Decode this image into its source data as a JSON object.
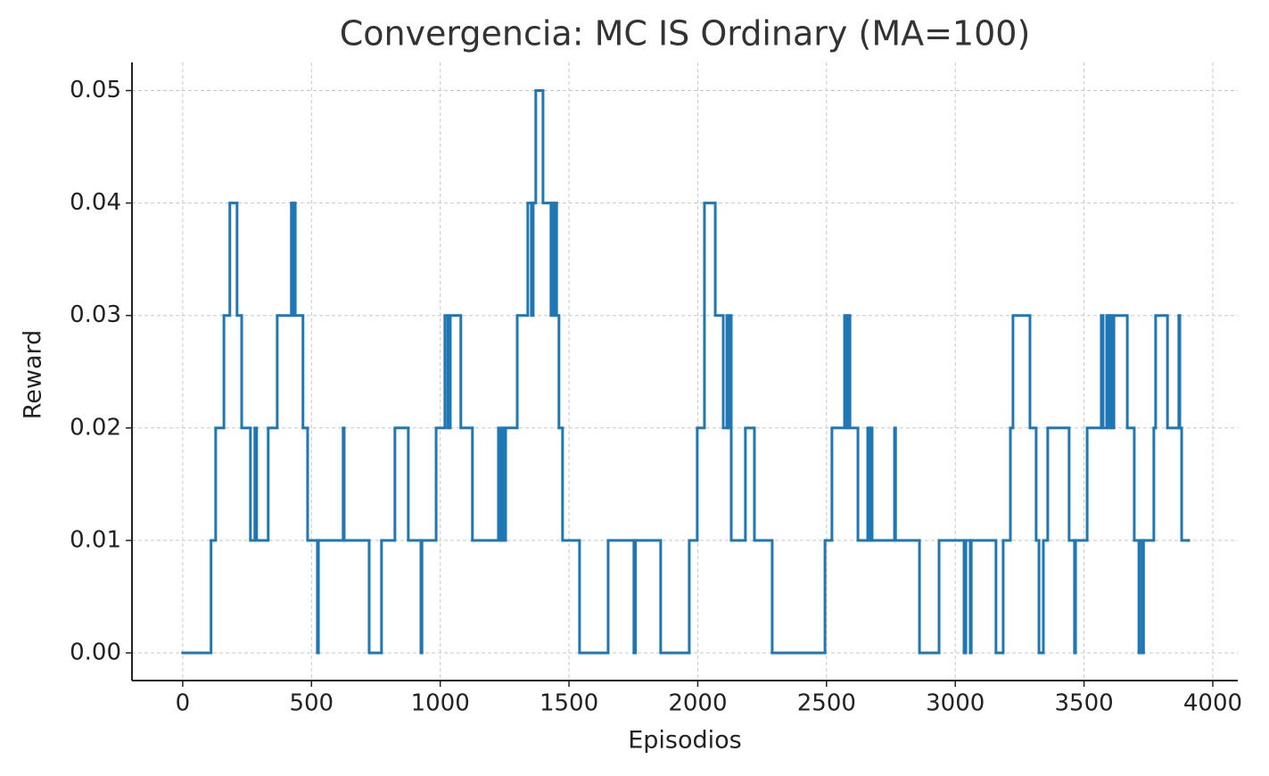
{
  "chart_data": {
    "type": "step",
    "title": "Convergencia: MC IS Ordinary (MA=100)",
    "x_label": "Episodios",
    "y_label": "Reward",
    "xlim": [
      -197,
      4097
    ],
    "ylim": [
      -0.00246,
      0.0525
    ],
    "xticks": [
      0,
      500,
      1000,
      1500,
      2000,
      2500,
      3000,
      3500,
      4000
    ],
    "yticks": [
      {
        "value": 0,
        "label": "0.00"
      },
      0.01,
      0.02,
      0.03,
      0.04,
      0.05
    ],
    "grid": true,
    "series": [
      {
        "color": "#1f77b4",
        "x": [
          0,
          110,
          128,
          160,
          183,
          211,
          229,
          263,
          280,
          287,
          332,
          367,
          422,
          426,
          433,
          437,
          467,
          485,
          523,
          527,
          623,
          627,
          724,
          772,
          824,
          876,
          925,
          929,
          984,
          1018,
          1029,
          1039,
          1080,
          1125,
          1226,
          1233,
          1240,
          1247,
          1254,
          1299,
          1340,
          1354,
          1361,
          1371,
          1399,
          1430,
          1437,
          1441,
          1448,
          1452,
          1461,
          1475,
          1541,
          1652,
          1752,
          1758,
          1856,
          1967,
          1998,
          2026,
          2068,
          2099,
          2113,
          2117,
          2126,
          2130,
          2185,
          2220,
          2289,
          2494,
          2521,
          2570,
          2577,
          2584,
          2591,
          2622,
          2660,
          2664,
          2670,
          2677,
          2764,
          2768,
          2861,
          2937,
          3034,
          3041,
          3058,
          3062,
          3158,
          3186,
          3214,
          3224,
          3290,
          3314,
          3325,
          3342,
          3359,
          3442,
          3463,
          3467,
          3512,
          3567,
          3574,
          3588,
          3595,
          3602,
          3609,
          3616,
          3668,
          3695,
          3713,
          3717,
          3727,
          3731,
          3771,
          3778,
          3824,
          3868,
          3872,
          3879,
          3906
        ],
        "values": [
          0,
          0.01,
          0.02,
          0.03,
          0.04,
          0.03,
          0.02,
          0.01,
          0.02,
          0.01,
          0.02,
          0.03,
          0.04,
          0.03,
          0.04,
          0.03,
          0.02,
          0.01,
          0,
          0.01,
          0.02,
          0.01,
          0,
          0.01,
          0.02,
          0.01,
          0,
          0.01,
          0.02,
          0.03,
          0.02,
          0.03,
          0.02,
          0.01,
          0.02,
          0.01,
          0.02,
          0.01,
          0.02,
          0.03,
          0.04,
          0.03,
          0.04,
          0.05,
          0.04,
          0.03,
          0.04,
          0.03,
          0.04,
          0.03,
          0.02,
          0.01,
          0,
          0.01,
          0,
          0.01,
          0,
          0.01,
          0.02,
          0.04,
          0.03,
          0.02,
          0.03,
          0.02,
          0.03,
          0.01,
          0.02,
          0.01,
          0,
          0.01,
          0.02,
          0.03,
          0.02,
          0.03,
          0.02,
          0.01,
          0.02,
          0.01,
          0.02,
          0.01,
          0.02,
          0.01,
          0,
          0.01,
          0,
          0.01,
          0,
          0.01,
          0,
          0.01,
          0.02,
          0.03,
          0.02,
          0.01,
          0,
          0.01,
          0.02,
          0.01,
          0,
          0.01,
          0.02,
          0.03,
          0.02,
          0.03,
          0.02,
          0.03,
          0.02,
          0.03,
          0.02,
          0.01,
          0,
          0.01,
          0,
          0.01,
          0.02,
          0.03,
          0.02,
          0.03,
          0.02,
          0.01,
          0.01
        ]
      }
    ]
  }
}
